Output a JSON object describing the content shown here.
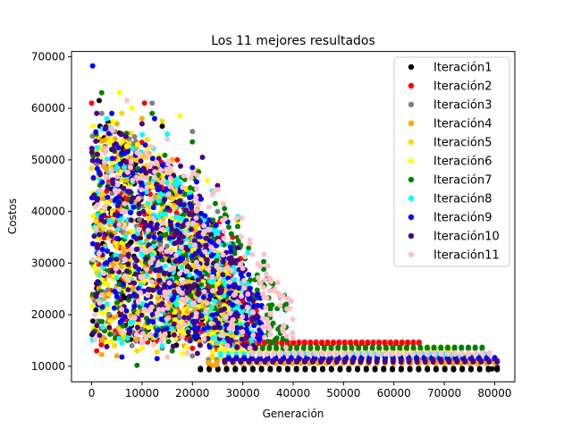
{
  "chart_data": {
    "type": "scatter",
    "title": "Los 11 mejores resultados",
    "xlabel": "Generación",
    "ylabel": "Costos",
    "xlim": [
      -4000,
      84000
    ],
    "ylim": [
      7000,
      71000
    ],
    "xticks": [
      0,
      10000,
      20000,
      30000,
      40000,
      50000,
      60000,
      70000,
      80000
    ],
    "xtick_labels": [
      "0",
      "10000",
      "20000",
      "30000",
      "40000",
      "50000",
      "60000",
      "70000",
      "80000"
    ],
    "yticks": [
      10000,
      20000,
      30000,
      40000,
      50000,
      60000,
      70000
    ],
    "ytick_labels": [
      "10000",
      "20000",
      "30000",
      "40000",
      "50000",
      "60000",
      "70000"
    ],
    "legend_position": "top-right",
    "series": [
      {
        "name": "Iteración1",
        "color": "#000000",
        "plateau": 9600,
        "plateau_end": 80500,
        "steep_end": 27000,
        "points": [
          [
            1500,
            61500
          ],
          [
            14000,
            56500
          ],
          [
            4000,
            52000
          ],
          [
            9000,
            48000
          ],
          [
            18000,
            44000
          ],
          [
            24000,
            38000
          ],
          [
            28000,
            33000
          ],
          [
            2000,
            15000
          ],
          [
            79500,
            9500
          ],
          [
            80500,
            9800
          ]
        ]
      },
      {
        "name": "Iteración2",
        "color": "#ff0000",
        "plateau": 14700,
        "plateau_end": 65000,
        "steep_end": 33000,
        "points": [
          [
            0,
            61000
          ],
          [
            10500,
            61000
          ],
          [
            6000,
            55000
          ],
          [
            17000,
            50000
          ],
          [
            28000,
            35000
          ],
          [
            32000,
            21000
          ],
          [
            1000,
            13000
          ],
          [
            20000,
            13500
          ]
        ]
      },
      {
        "name": "Iteración3",
        "color": "#808080",
        "plateau": 11300,
        "plateau_end": 80000,
        "steep_end": 29000,
        "points": [
          [
            2000,
            59000
          ],
          [
            12000,
            61000
          ],
          [
            20000,
            55500
          ],
          [
            7000,
            53000
          ],
          [
            25000,
            40000
          ],
          [
            8000,
            14000
          ],
          [
            14000,
            13500
          ],
          [
            20000,
            12000
          ]
        ]
      },
      {
        "name": "Iteración4",
        "color": "#ffa500",
        "plateau": 10800,
        "plateau_end": 80000,
        "steep_end": 29000,
        "points": [
          [
            5000,
            57000
          ],
          [
            10000,
            58000
          ],
          [
            16000,
            50000
          ],
          [
            27000,
            30000
          ],
          [
            2000,
            12300
          ],
          [
            5000,
            12000
          ],
          [
            24000,
            10200
          ],
          [
            24800,
            10300
          ]
        ]
      },
      {
        "name": "Iteración5",
        "color": "#ffd700",
        "plateau": 12000,
        "plateau_end": 77000,
        "steep_end": 30000,
        "points": [
          [
            6000,
            59000
          ],
          [
            14000,
            57500
          ],
          [
            21000,
            48000
          ],
          [
            28000,
            33500
          ],
          [
            9000,
            13000
          ],
          [
            13000,
            12800
          ]
        ]
      },
      {
        "name": "Iteración6",
        "color": "#ffff00",
        "plateau": 13200,
        "plateau_end": 71000,
        "steep_end": 30000,
        "points": [
          [
            5500,
            63000
          ],
          [
            17500,
            58500
          ],
          [
            8000,
            60000
          ],
          [
            23000,
            46000
          ],
          [
            29000,
            38000
          ],
          [
            10000,
            13500
          ],
          [
            18000,
            12500
          ]
        ]
      },
      {
        "name": "Iteración7",
        "color": "#008000",
        "plateau": 13700,
        "plateau_end": 77500,
        "steep_end": 39000,
        "points": [
          [
            2000,
            63000
          ],
          [
            12000,
            59000
          ],
          [
            20000,
            53500
          ],
          [
            27000,
            38000
          ],
          [
            29000,
            38500
          ],
          [
            38000,
            17000
          ],
          [
            9000,
            10200
          ],
          [
            16000,
            13000
          ]
        ]
      },
      {
        "name": "Iteración8",
        "color": "#00ffff",
        "plateau": 12400,
        "plateau_end": 78000,
        "steep_end": 32000,
        "points": [
          [
            3000,
            58000
          ],
          [
            15000,
            55000
          ],
          [
            24000,
            44000
          ],
          [
            29000,
            39000
          ],
          [
            31000,
            32000
          ],
          [
            14000,
            14000
          ],
          [
            6000,
            14500
          ]
        ]
      },
      {
        "name": "Iteración9",
        "color": "#0000ff",
        "plateau": 11700,
        "plateau_end": 80000,
        "steep_end": 34000,
        "points": [
          [
            200,
            68200
          ],
          [
            4000,
            59000
          ],
          [
            12500,
            58000
          ],
          [
            20000,
            48500
          ],
          [
            27000,
            38000
          ],
          [
            30000,
            27000
          ],
          [
            6000,
            11800
          ],
          [
            13000,
            11500
          ]
        ]
      },
      {
        "name": "Iteración10",
        "color": "#4b0082",
        "plateau": 11100,
        "plateau_end": 80500,
        "steep_end": 33000,
        "points": [
          [
            1000,
            59000
          ],
          [
            10000,
            57000
          ],
          [
            22000,
            50500
          ],
          [
            25000,
            45000
          ],
          [
            29000,
            33000
          ],
          [
            3000,
            13800
          ],
          [
            21000,
            12500
          ]
        ]
      },
      {
        "name": "Iteración11",
        "color": "#ffc0cb",
        "plateau": 12600,
        "plateau_end": 79000,
        "steep_end": 40000,
        "points": [
          [
            7000,
            61500
          ],
          [
            4000,
            56000
          ],
          [
            15000,
            54000
          ],
          [
            21000,
            47000
          ],
          [
            30000,
            29000
          ],
          [
            31000,
            24000
          ],
          [
            35000,
            17500
          ],
          [
            15000,
            11800
          ],
          [
            19000,
            12500
          ]
        ]
      }
    ]
  }
}
